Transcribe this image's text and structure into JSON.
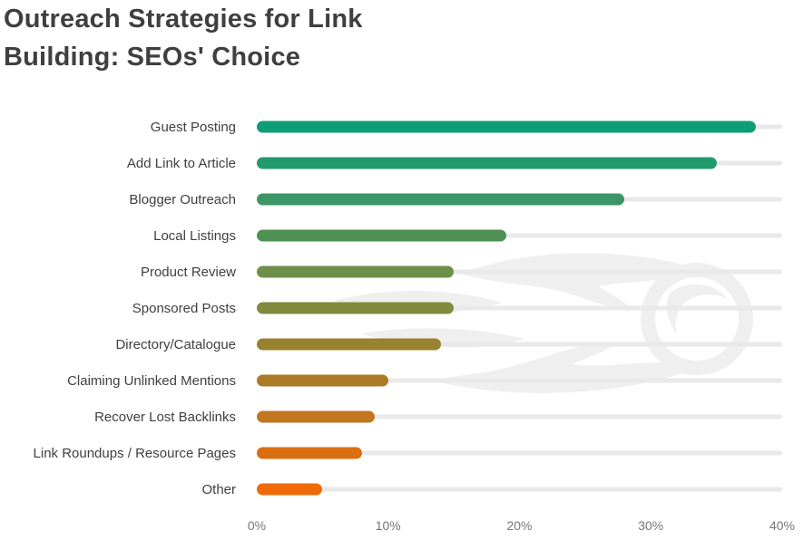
{
  "title": {
    "line1": "Outreach Strategies for Link",
    "line2": "Building: SEOs' Choice"
  },
  "chart_data": {
    "type": "bar",
    "orientation": "horizontal",
    "title": "Outreach Strategies for Link Building: SEOs' Choice",
    "categories": [
      "Guest Posting",
      "Add Link to Article",
      "Blogger Outreach",
      "Local Listings",
      "Product Review",
      "Sponsored Posts",
      "Directory/Catalogue",
      "Claiming Unlinked Mentions",
      "Recover Lost Backlinks",
      "Link Roundups / Resource Pages",
      "Other"
    ],
    "values": [
      38,
      35,
      28,
      19,
      15,
      15,
      14,
      10,
      9,
      8,
      5
    ],
    "unit": "%",
    "xlabel": "",
    "ylabel": "",
    "xlim": [
      0,
      40
    ],
    "x_ticks": [
      "0%",
      "10%",
      "20%",
      "30%",
      "40%"
    ],
    "grid": false,
    "legend": "none",
    "bar_colors": [
      "#0d9e76",
      "#219a6c",
      "#3b9564",
      "#4f9154",
      "#6e8f4a",
      "#808b3e",
      "#99822f",
      "#ad7a25",
      "#c2761f",
      "#db6e10",
      "#f16a08"
    ],
    "track_color": "#e9e9eb",
    "watermark": "semrush-comet-logo",
    "watermark_color": "#efefef"
  },
  "colors": {
    "title_text": "#3f3f3f",
    "label_text": "#3f3f3f",
    "tick_text": "#76767a",
    "background": "#ffffff"
  }
}
